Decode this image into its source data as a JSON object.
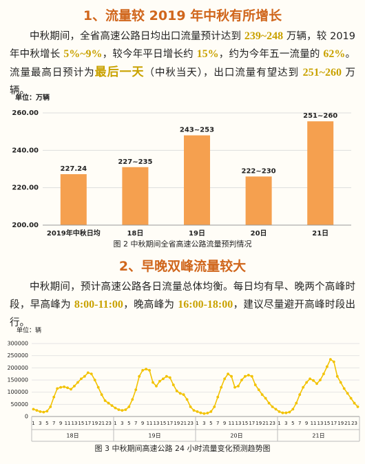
{
  "sections": [
    {
      "title": "1、流量较 2019 年中秋有所增长",
      "paragraph": [
        {
          "text": "中秋期间，全省高速公路日均出口流量预计达到 "
        },
        {
          "text": "239~248",
          "style": "highlight"
        },
        {
          "text": " 万辆，较 2019 年中秋增长 "
        },
        {
          "text": "5%~9%",
          "style": "highlight"
        },
        {
          "text": "，较今年平日增长约 "
        },
        {
          "text": "15%",
          "style": "highlight"
        },
        {
          "text": "，约为今年五一流量的 "
        },
        {
          "text": "62%",
          "style": "highlight"
        },
        {
          "text": "。流量最高日预计为"
        },
        {
          "text": "最后一天",
          "style": "strong"
        },
        {
          "text": "（中秋当天），出口流量有望达到 "
        },
        {
          "text": "251~260",
          "style": "highlight"
        },
        {
          "text": " 万辆。"
        }
      ]
    },
    {
      "title": "2、早晚双峰流量较大",
      "paragraph": [
        {
          "text": "中秋期间，预计高速公路各日流量总体均衡。每日均有早、晚两个高峰时段，早高峰为 "
        },
        {
          "text": "8:00-11:00",
          "style": "highlight"
        },
        {
          "text": "，晚高峰为 "
        },
        {
          "text": "16:00-18:00",
          "style": "highlight"
        },
        {
          "text": "，建议尽量避开高峰时段出行。"
        }
      ]
    }
  ],
  "chart_data": [
    {
      "type": "bar",
      "y_unit": "单位：万辆",
      "caption": "图 2    中秋期间全省高速公路流量预判情况",
      "categories": [
        "2019年中秋日均",
        "18日",
        "19日",
        "20日",
        "21日"
      ],
      "values": [
        227.24,
        231,
        248,
        226,
        255.5
      ],
      "value_labels": [
        "227.24",
        "227~235",
        "243~253",
        "222~230",
        "251~260"
      ],
      "color": "#f5a04f",
      "ylim": [
        200,
        260
      ],
      "yticks": [
        {
          "value": 200,
          "label": "200.00"
        },
        {
          "value": 220,
          "label": "220.00"
        },
        {
          "value": 240,
          "label": "240.00"
        },
        {
          "value": 260,
          "label": "260.00"
        }
      ],
      "grid": true
    },
    {
      "type": "line",
      "y_unit": "单位：辆",
      "caption": "图 3    中秋期间高速公路 24 小时流量变化预测趋势图",
      "x": [
        "1",
        null,
        "3",
        null,
        "5",
        null,
        "7",
        null,
        "9",
        null,
        "11",
        null,
        "13",
        null,
        "15",
        null,
        "17",
        null,
        "19",
        null,
        "21",
        null,
        "23",
        null,
        "1",
        null,
        "3",
        null,
        "5",
        null,
        "7",
        null,
        "9",
        null,
        "11",
        null,
        "13",
        null,
        "15",
        null,
        "17",
        null,
        "19",
        null,
        "21",
        null,
        "23",
        null,
        "1",
        null,
        "3",
        null,
        "5",
        null,
        "7",
        null,
        "9",
        null,
        "11",
        null,
        "13",
        null,
        "15",
        null,
        "17",
        null,
        "19",
        null,
        "21",
        null,
        "23",
        null,
        "1",
        null,
        "3",
        null,
        "5",
        null,
        "7",
        null,
        "9",
        null,
        "11",
        null,
        "13",
        null,
        "15",
        null,
        "17",
        null,
        "19",
        null,
        "21",
        null,
        "23",
        null
      ],
      "groups": [
        "18日",
        "19日",
        "20日",
        "21日"
      ],
      "values": [
        30000,
        25000,
        20000,
        18000,
        22000,
        40000,
        80000,
        115000,
        120000,
        122000,
        118000,
        112000,
        125000,
        140000,
        155000,
        165000,
        180000,
        175000,
        150000,
        120000,
        90000,
        65000,
        55000,
        45000,
        35000,
        28000,
        25000,
        28000,
        40000,
        70000,
        110000,
        165000,
        190000,
        195000,
        190000,
        140000,
        125000,
        145000,
        155000,
        165000,
        160000,
        130000,
        105000,
        95000,
        90000,
        70000,
        40000,
        25000,
        20000,
        15000,
        12000,
        14000,
        20000,
        40000,
        80000,
        120000,
        155000,
        175000,
        165000,
        120000,
        125000,
        150000,
        165000,
        170000,
        165000,
        130000,
        110000,
        90000,
        75000,
        55000,
        40000,
        30000,
        20000,
        15000,
        15000,
        18000,
        30000,
        55000,
        90000,
        120000,
        140000,
        155000,
        148000,
        135000,
        150000,
        175000,
        205000,
        235000,
        225000,
        165000,
        140000,
        115000,
        95000,
        75000,
        55000,
        40000
      ],
      "color": "#f2c200",
      "ylim": [
        0,
        300000
      ],
      "yticks": [
        0,
        50000,
        100000,
        150000,
        200000,
        250000,
        300000
      ],
      "grid": true
    }
  ]
}
